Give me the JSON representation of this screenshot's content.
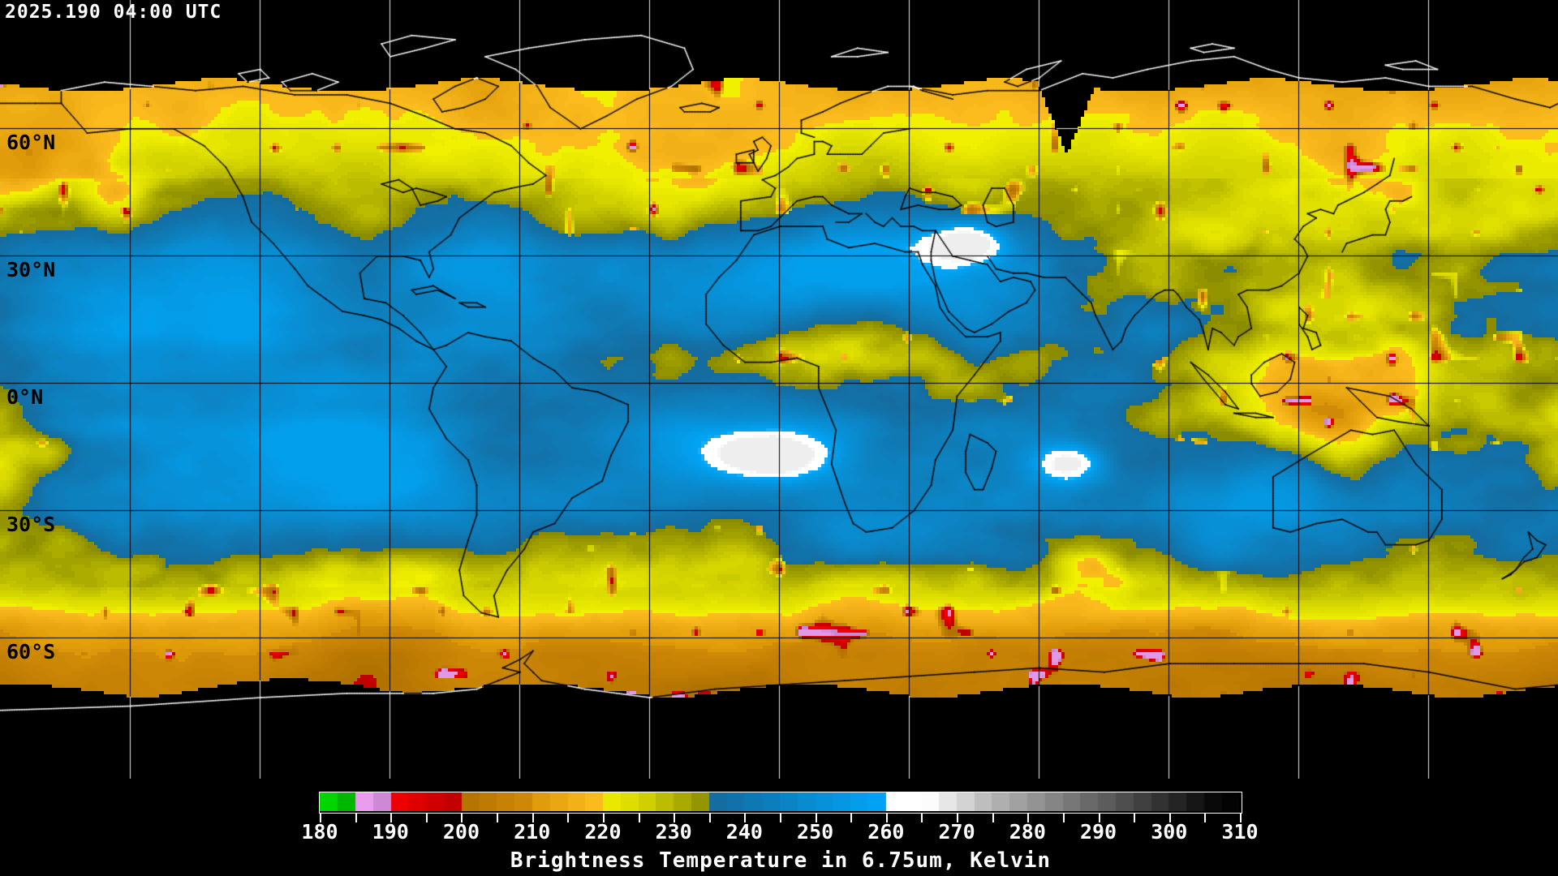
{
  "header": {
    "timestamp": "2025.190 04:00 UTC"
  },
  "map": {
    "latitude_labels": [
      {
        "text": "60°N",
        "lat": 60
      },
      {
        "text": "30°N",
        "lat": 30
      },
      {
        "text": "0°N",
        "lat": 0
      },
      {
        "text": "30°S",
        "lat": -30
      },
      {
        "text": "60°S",
        "lat": -60
      }
    ],
    "grid": {
      "lat_step_deg": 30,
      "lon_step_deg": 30
    },
    "background_color": "#000000",
    "coastline_color_over_data": "#000000",
    "coastline_color_over_background": "#ffffff"
  },
  "colorbar": {
    "title": "Brightness Temperature in 6.75um, Kelvin",
    "min": 180,
    "max": 310,
    "tick_labels": [
      "180",
      "190",
      "200",
      "210",
      "220",
      "230",
      "240",
      "250",
      "260",
      "270",
      "280",
      "290",
      "300",
      "310"
    ],
    "minor_tick_step": 5,
    "palette_stops": [
      {
        "bt": 180,
        "color": "#00e400"
      },
      {
        "bt": 184.9,
        "color": "#00aa00"
      },
      {
        "bt": 185,
        "color": "#f8a8f8"
      },
      {
        "bt": 189.9,
        "color": "#c080cc"
      },
      {
        "bt": 190,
        "color": "#f40000"
      },
      {
        "bt": 199.9,
        "color": "#bc0000"
      },
      {
        "bt": 200,
        "color": "#b27200"
      },
      {
        "bt": 209.9,
        "color": "#d28c08"
      },
      {
        "bt": 210,
        "color": "#dc9808"
      },
      {
        "bt": 219.9,
        "color": "#ffc020"
      },
      {
        "bt": 220,
        "color": "#f0f000"
      },
      {
        "bt": 226,
        "color": "#d2d200"
      },
      {
        "bt": 235,
        "color": "#8c8c00"
      },
      {
        "bt": 235.1,
        "color": "#156a9d"
      },
      {
        "bt": 259.9,
        "color": "#00a6f8"
      },
      {
        "bt": 261,
        "color": "#ffffff"
      },
      {
        "bt": 266,
        "color": "#ffffff"
      },
      {
        "bt": 274,
        "color": "#bcbcbc"
      },
      {
        "bt": 306,
        "color": "#0a0a0a"
      },
      {
        "bt": 310,
        "color": "#000000"
      }
    ]
  }
}
